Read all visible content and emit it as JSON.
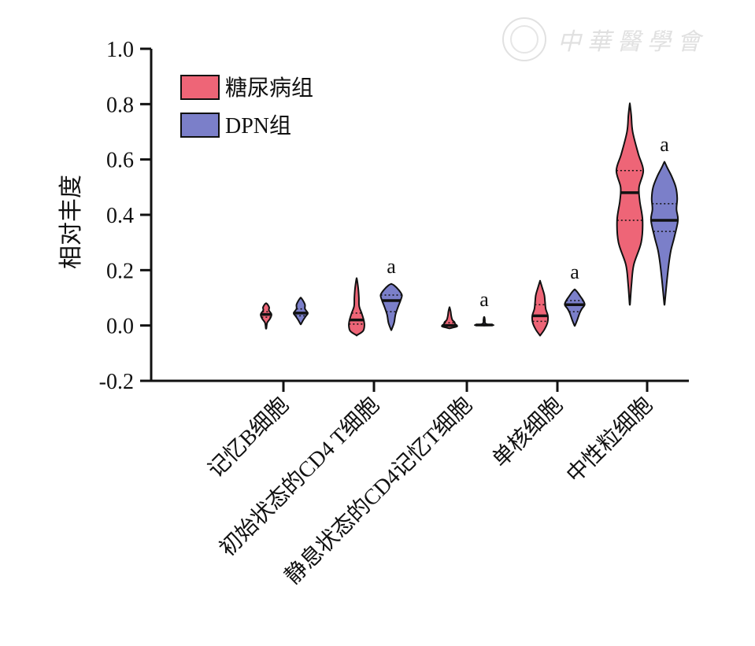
{
  "watermark": {
    "text": "中華醫學會",
    "icon": "society-seal-icon"
  },
  "chart_data": {
    "type": "violin",
    "title": "",
    "xlabel": "",
    "ylabel": "相对丰度",
    "ylim": [
      -0.2,
      1.0
    ],
    "yticks": [
      "1.0",
      "0.8",
      "0.6",
      "0.4",
      "0.2",
      "0.0",
      "-0.2"
    ],
    "categories": [
      "记忆B细胞",
      "初始状态的CD4 T细胞",
      "静息状态的CD4记忆T细胞",
      "单核细胞",
      "中性粒细胞"
    ],
    "legend": {
      "position": "top-left"
    },
    "significance_marker": "a",
    "series": [
      {
        "name": "糖尿病组",
        "color": "#ee6577",
        "violins": [
          {
            "min": -0.01,
            "max": 0.08,
            "median": 0.04,
            "q1": 0.03,
            "q3": 0.05,
            "profile": [
              [
                -0.01,
                0.002
              ],
              [
                0.01,
                0.008
              ],
              [
                0.025,
                0.028
              ],
              [
                0.04,
                0.038
              ],
              [
                0.055,
                0.02
              ],
              [
                0.065,
                0.022
              ],
              [
                0.075,
                0.012
              ],
              [
                0.08,
                0.002
              ]
            ]
          },
          {
            "min": -0.035,
            "max": 0.17,
            "median": 0.02,
            "q1": 0.005,
            "q3": 0.045,
            "profile": [
              [
                -0.035,
                0.002
              ],
              [
                -0.02,
                0.045
              ],
              [
                0.0,
                0.055
              ],
              [
                0.02,
                0.05
              ],
              [
                0.045,
                0.035
              ],
              [
                0.07,
                0.018
              ],
              [
                0.1,
                0.016
              ],
              [
                0.13,
                0.012
              ],
              [
                0.155,
                0.006
              ],
              [
                0.17,
                0.001
              ]
            ]
          },
          {
            "min": -0.01,
            "max": 0.065,
            "median": 0.0,
            "q1": -0.003,
            "q3": 0.01,
            "profile": [
              [
                -0.01,
                0.004
              ],
              [
                -0.004,
                0.05
              ],
              [
                0.0,
                0.052
              ],
              [
                0.005,
                0.04
              ],
              [
                0.012,
                0.035
              ],
              [
                0.02,
                0.02
              ],
              [
                0.035,
                0.012
              ],
              [
                0.05,
                0.008
              ],
              [
                0.065,
                0.001
              ]
            ]
          },
          {
            "min": -0.035,
            "max": 0.16,
            "median": 0.035,
            "q1": 0.015,
            "q3": 0.075,
            "profile": [
              [
                -0.035,
                0.002
              ],
              [
                -0.015,
                0.03
              ],
              [
                0.01,
                0.052
              ],
              [
                0.035,
                0.055
              ],
              [
                0.06,
                0.04
              ],
              [
                0.085,
                0.035
              ],
              [
                0.11,
                0.03
              ],
              [
                0.135,
                0.016
              ],
              [
                0.16,
                0.001
              ]
            ]
          },
          {
            "min": 0.08,
            "max": 0.8,
            "median": 0.48,
            "q1": 0.38,
            "q3": 0.56,
            "profile": [
              [
                0.08,
                0.002
              ],
              [
                0.15,
                0.012
              ],
              [
                0.22,
                0.028
              ],
              [
                0.3,
                0.08
              ],
              [
                0.38,
                0.09
              ],
              [
                0.45,
                0.07
              ],
              [
                0.5,
                0.065
              ],
              [
                0.56,
                0.095
              ],
              [
                0.62,
                0.06
              ],
              [
                0.7,
                0.02
              ],
              [
                0.76,
                0.01
              ],
              [
                0.8,
                0.001
              ]
            ]
          }
        ]
      },
      {
        "name": "DPN组",
        "color": "#7b7fc9",
        "violins": [
          {
            "min": 0.005,
            "max": 0.1,
            "median": 0.045,
            "q1": 0.035,
            "q3": 0.06,
            "profile": [
              [
                0.005,
                0.002
              ],
              [
                0.02,
                0.018
              ],
              [
                0.035,
                0.038
              ],
              [
                0.045,
                0.05
              ],
              [
                0.06,
                0.03
              ],
              [
                0.075,
                0.03
              ],
              [
                0.09,
                0.016
              ],
              [
                0.1,
                0.002
              ]
            ]
          },
          {
            "min": -0.015,
            "max": 0.15,
            "median": 0.09,
            "q1": 0.05,
            "q3": 0.11,
            "profile": [
              [
                -0.015,
                0.002
              ],
              [
                0.01,
                0.02
              ],
              [
                0.04,
                0.03
              ],
              [
                0.07,
                0.05
              ],
              [
                0.09,
                0.065
              ],
              [
                0.11,
                0.075
              ],
              [
                0.13,
                0.05
              ],
              [
                0.145,
                0.02
              ],
              [
                0.15,
                0.002
              ]
            ]
          },
          {
            "min": 0.0,
            "max": 0.03,
            "median": 0.002,
            "q1": 0.001,
            "q3": 0.003,
            "profile": [
              [
                0.0,
                0.001
              ],
              [
                0.001,
                0.06
              ],
              [
                0.002,
                0.06
              ],
              [
                0.004,
                0.02
              ],
              [
                0.01,
                0.006
              ],
              [
                0.02,
                0.005
              ],
              [
                0.03,
                0.002
              ]
            ]
          },
          {
            "min": 0.0,
            "max": 0.13,
            "median": 0.075,
            "q1": 0.05,
            "q3": 0.09,
            "profile": [
              [
                0.0,
                0.002
              ],
              [
                0.02,
                0.018
              ],
              [
                0.045,
                0.035
              ],
              [
                0.06,
                0.05
              ],
              [
                0.075,
                0.07
              ],
              [
                0.09,
                0.06
              ],
              [
                0.105,
                0.04
              ],
              [
                0.12,
                0.02
              ],
              [
                0.13,
                0.002
              ]
            ]
          },
          {
            "min": 0.08,
            "max": 0.59,
            "median": 0.38,
            "q1": 0.34,
            "q3": 0.44,
            "profile": [
              [
                0.08,
                0.002
              ],
              [
                0.15,
                0.015
              ],
              [
                0.22,
                0.03
              ],
              [
                0.27,
                0.045
              ],
              [
                0.32,
                0.07
              ],
              [
                0.38,
                0.095
              ],
              [
                0.42,
                0.085
              ],
              [
                0.46,
                0.09
              ],
              [
                0.5,
                0.08
              ],
              [
                0.54,
                0.05
              ],
              [
                0.57,
                0.02
              ],
              [
                0.59,
                0.002
              ]
            ]
          }
        ]
      }
    ],
    "annotations": [
      {
        "series": "DPN组",
        "category": "初始状态的CD4 T细胞",
        "text": "a"
      },
      {
        "series": "DPN组",
        "category": "静息状态的CD4记忆T细胞",
        "text": "a"
      },
      {
        "series": "DPN组",
        "category": "单核细胞",
        "text": "a"
      },
      {
        "series": "DPN组",
        "category": "中性粒细胞",
        "text": "a"
      }
    ]
  }
}
